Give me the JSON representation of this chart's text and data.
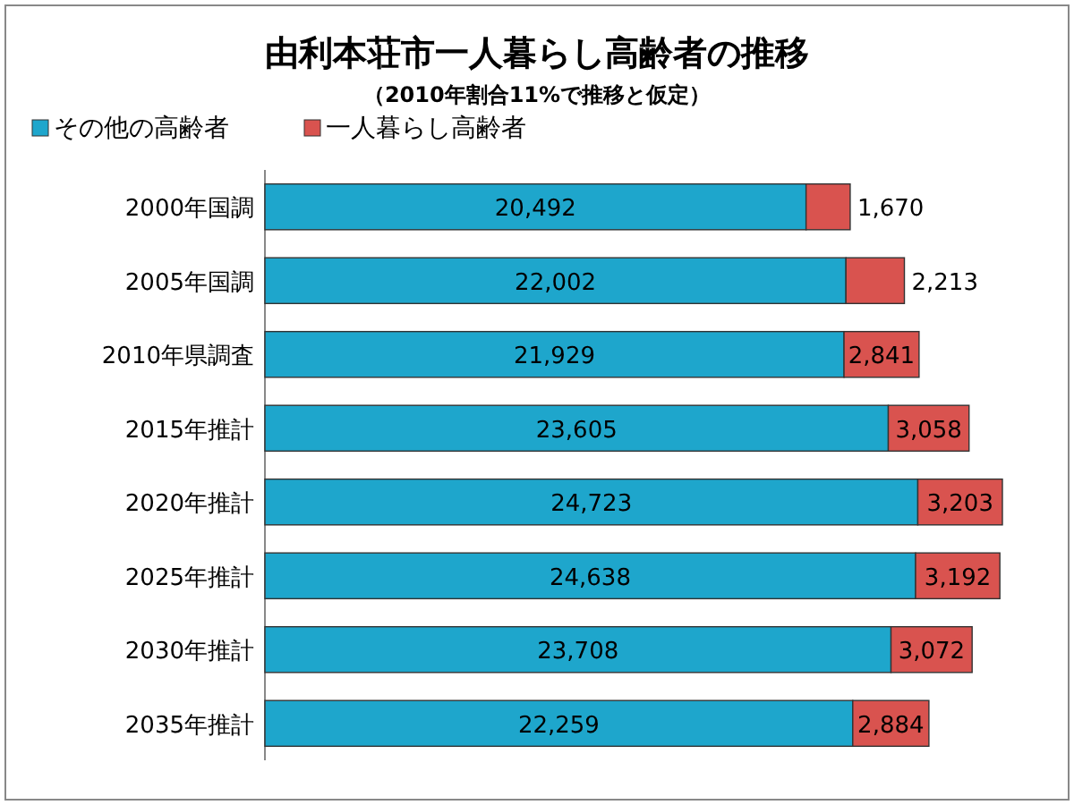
{
  "chart_data": {
    "type": "bar",
    "orientation": "horizontal",
    "stacked": true,
    "title": "由利本荘市一人暮らし高齢者の推移",
    "subtitle": "（2010年割合11%で推移と仮定）",
    "legend": "top left",
    "categories": [
      "2000年国調",
      "2005年国調",
      "2010年県調査",
      "2015年推計",
      "2020年推計",
      "2025年推計",
      "2030年推計",
      "2035年推計"
    ],
    "series": [
      {
        "name": "その他の高齢者",
        "color": "#1ea6cc",
        "values": [
          20492,
          22002,
          21929,
          23605,
          24723,
          24638,
          23708,
          22259
        ],
        "value_labels": [
          "20,492",
          "22,002",
          "21,929",
          "23,605",
          "24,723",
          "24,638",
          "23,708",
          "22,259"
        ]
      },
      {
        "name": "一人暮らし高齢者",
        "color": "#d9534f",
        "values": [
          1670,
          2213,
          2841,
          3058,
          3203,
          3192,
          3072,
          2884
        ],
        "value_labels": [
          "1,670",
          "2,213",
          "2,841",
          "3,058",
          "3,203",
          "3,192",
          "3,072",
          "2,884"
        ]
      }
    ]
  }
}
